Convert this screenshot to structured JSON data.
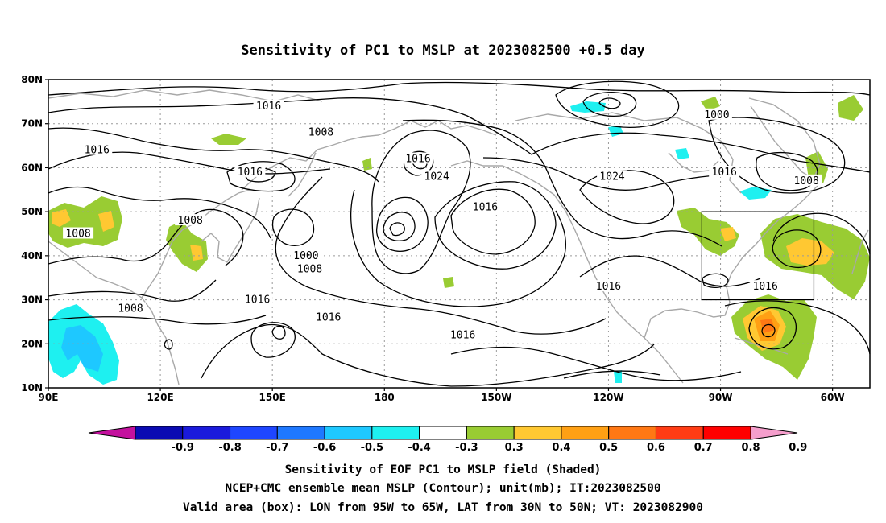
{
  "title": "Sensitivity of PC1 to MSLP at 2023082500 +0.5 day",
  "axes": {
    "lat_labels": [
      "80N",
      "70N",
      "60N",
      "50N",
      "40N",
      "30N",
      "20N",
      "10N"
    ],
    "lon_labels": [
      "90E",
      "120E",
      "150E",
      "180",
      "150W",
      "120W",
      "90W",
      "60W"
    ]
  },
  "map": {
    "lon_range_deg_east": [
      90,
      310
    ],
    "lat_range_deg_north": [
      10,
      80
    ],
    "valid_box": {
      "lon": [
        265,
        295
      ],
      "lat": [
        30,
        50
      ]
    }
  },
  "contours": {
    "unit": "mb",
    "labels": [
      {
        "text": "1016",
        "lon": 149,
        "lat": 74
      },
      {
        "text": "1000",
        "lon": 269,
        "lat": 72
      },
      {
        "text": "1008",
        "lon": 163,
        "lat": 68
      },
      {
        "text": "1016",
        "lon": 103,
        "lat": 64
      },
      {
        "text": "1016",
        "lon": 144,
        "lat": 59
      },
      {
        "text": "1016",
        "lon": 189,
        "lat": 62
      },
      {
        "text": "1024",
        "lon": 194,
        "lat": 58
      },
      {
        "text": "1016",
        "lon": 271,
        "lat": 59
      },
      {
        "text": "1024",
        "lon": 241,
        "lat": 58
      },
      {
        "text": "1008",
        "lon": 293,
        "lat": 57
      },
      {
        "text": "1008",
        "lon": 128,
        "lat": 48
      },
      {
        "text": "1016",
        "lon": 207,
        "lat": 51
      },
      {
        "text": "1008",
        "lon": 98,
        "lat": 45
      },
      {
        "text": "1000",
        "lon": 159,
        "lat": 40
      },
      {
        "text": "1008",
        "lon": 160,
        "lat": 37
      },
      {
        "text": "1016",
        "lon": 240,
        "lat": 33
      },
      {
        "text": "1016",
        "lon": 282,
        "lat": 33
      },
      {
        "text": "1016",
        "lon": 146,
        "lat": 30
      },
      {
        "text": "1008",
        "lon": 112,
        "lat": 28
      },
      {
        "text": "1016",
        "lon": 165,
        "lat": 26
      },
      {
        "text": "1016",
        "lon": 201,
        "lat": 22
      }
    ]
  },
  "colorbar": {
    "labels": [
      "-0.9",
      "-0.8",
      "-0.7",
      "-0.6",
      "-0.5",
      "-0.4",
      "-0.3",
      "0.3",
      "0.4",
      "0.5",
      "0.6",
      "0.7",
      "0.8",
      "0.9"
    ],
    "colors": [
      "#c4119e",
      "#0a0ab2",
      "#1a1adc",
      "#1e46ff",
      "#1e78ff",
      "#1ec8ff",
      "#1ef0f0",
      "#ffffff",
      "#99cc33",
      "#ffc832",
      "#ffa014",
      "#ff7814",
      "#ff3c14",
      "#ff0000",
      "#f59ecc"
    ]
  },
  "captions": [
    "Sensitivity of EOF PC1 to MSLP field (Shaded)",
    "NCEP+CMC ensemble mean MSLP (Contour); unit(mb); IT:2023082500",
    "Valid area (box): LON from 95W to 65W, LAT from 30N to 50N; VT: 2023082900"
  ]
}
